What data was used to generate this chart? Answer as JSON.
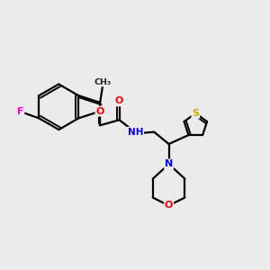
{
  "background_color": "#ebebeb",
  "bond_color": "#000000",
  "figsize": [
    3.0,
    3.0
  ],
  "dpi": 100,
  "atom_colors": {
    "F": "#ff00cc",
    "O": "#ff0000",
    "N": "#0000ff",
    "S": "#ccaa00",
    "C": "#000000",
    "H": "#555555"
  },
  "lw": 1.6
}
